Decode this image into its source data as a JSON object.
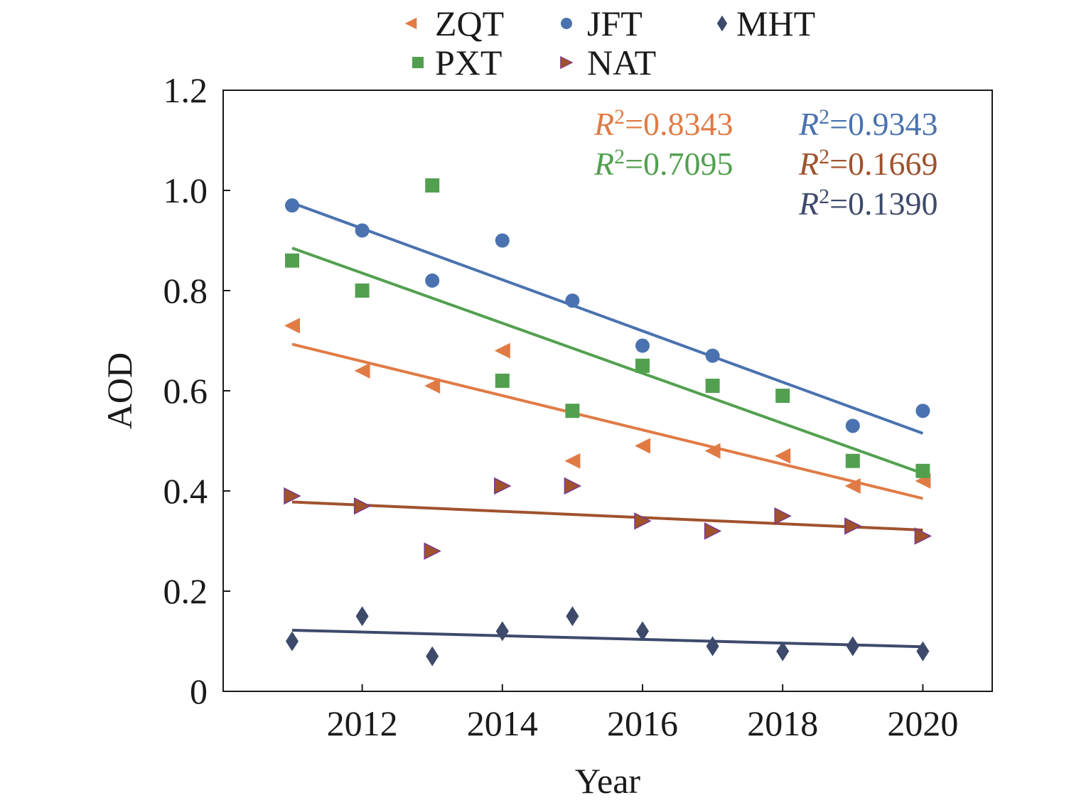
{
  "chart_data": {
    "type": "scatter",
    "xlabel": "Year",
    "ylabel": "AOD",
    "xlim": [
      2010,
      2021
    ],
    "ylim": [
      0,
      1.2
    ],
    "x_ticks": [
      2012,
      2014,
      2016,
      2018,
      2020
    ],
    "y_ticks": [
      0,
      0.2,
      0.4,
      0.6,
      0.8,
      1.0,
      1.2
    ],
    "y_tick_labels": [
      "0",
      "0.2",
      "0.4",
      "0.6",
      "0.8",
      "1.0",
      "1.2"
    ],
    "legend_position": "top-center",
    "grid": false,
    "x": [
      2011,
      2012,
      2013,
      2014,
      2015,
      2016,
      2017,
      2018,
      2019,
      2020
    ],
    "series": [
      {
        "name": "ZQT",
        "marker": "triangle-left",
        "color": "#e07b45",
        "values": [
          0.73,
          0.64,
          0.61,
          0.68,
          0.46,
          0.49,
          0.48,
          0.47,
          0.41,
          0.42
        ],
        "trend": [
          0.693,
          0.385
        ],
        "r2_prefix": "R",
        "r2_exp": "2",
        "r2_value": "=0.8343"
      },
      {
        "name": "JFT",
        "marker": "circle",
        "color": "#4a72b0",
        "values": [
          0.97,
          0.92,
          0.82,
          0.9,
          0.78,
          0.69,
          0.67,
          0.59,
          0.53,
          0.56
        ],
        "trend": [
          0.975,
          0.515
        ],
        "r2_prefix": "R",
        "r2_exp": "2",
        "r2_value": "=0.9343"
      },
      {
        "name": "MHT",
        "marker": "diamond",
        "color": "#3d4a6b",
        "values": [
          0.1,
          0.15,
          0.07,
          0.12,
          0.15,
          0.12,
          0.09,
          0.08,
          0.09,
          0.08
        ],
        "trend": [
          0.122,
          0.089
        ],
        "r2_prefix": "R",
        "r2_exp": "2",
        "r2_value": "=0.1390"
      },
      {
        "name": "PXT",
        "marker": "square",
        "color": "#52a04f",
        "values": [
          0.86,
          0.8,
          1.01,
          0.62,
          0.56,
          0.65,
          0.61,
          0.59,
          0.46,
          0.44
        ],
        "trend": [
          0.885,
          0.435
        ],
        "r2_prefix": "R",
        "r2_exp": "2",
        "r2_value": "=0.7095"
      },
      {
        "name": "NAT",
        "marker": "triangle-right",
        "color": "#a0522d",
        "values": [
          0.39,
          0.37,
          0.28,
          0.41,
          0.41,
          0.34,
          0.32,
          0.35,
          0.33,
          0.31
        ],
        "trend": [
          0.378,
          0.322
        ],
        "r2_prefix": "R",
        "r2_exp": "2",
        "r2_value": "=0.1669"
      }
    ]
  }
}
